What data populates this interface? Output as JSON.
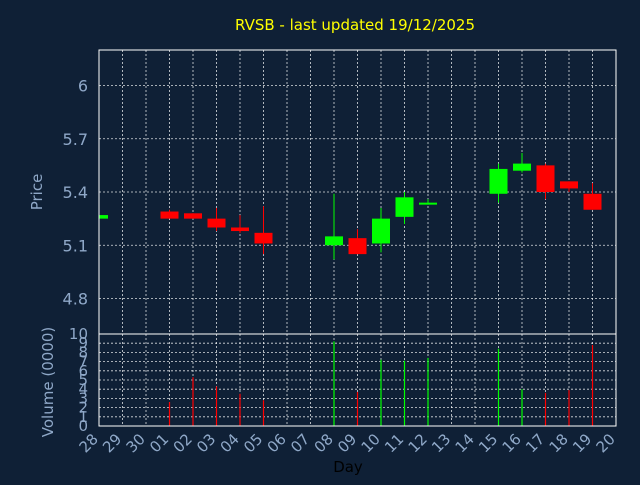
{
  "chart_data": {
    "type": "candlestick",
    "title": "RVSB - last updated 19/12/2025",
    "xlabel": "Day",
    "colors": {
      "background": "#0f2036",
      "up": "#00ff00",
      "down": "#ff0000",
      "title": "#ffff00",
      "axis_text": "#8fa8c8",
      "grid": "#ffffff"
    },
    "days": [
      "28",
      "29",
      "30",
      "01",
      "02",
      "03",
      "04",
      "05",
      "06",
      "07",
      "08",
      "09",
      "10",
      "11",
      "12",
      "13",
      "14",
      "15",
      "16",
      "17",
      "18",
      "19",
      "20"
    ],
    "price": {
      "ylabel": "Price",
      "ylim": [
        4.6,
        6.2
      ],
      "ticks": [
        "4.8",
        "5.1",
        "5.4",
        "5.7",
        "6"
      ],
      "candles": [
        {
          "day": "28",
          "open": 5.25,
          "high": 5.27,
          "low": 5.25,
          "close": 5.27
        },
        {
          "day": "01",
          "open": 5.29,
          "high": 5.3,
          "low": 5.25,
          "close": 5.25
        },
        {
          "day": "02",
          "open": 5.28,
          "high": 5.28,
          "low": 5.25,
          "close": 5.25
        },
        {
          "day": "03",
          "open": 5.25,
          "high": 5.31,
          "low": 5.18,
          "close": 5.2
        },
        {
          "day": "04",
          "open": 5.2,
          "high": 5.27,
          "low": 5.17,
          "close": 5.18
        },
        {
          "day": "05",
          "open": 5.17,
          "high": 5.32,
          "low": 5.05,
          "close": 5.11
        },
        {
          "day": "08",
          "open": 5.1,
          "high": 5.39,
          "low": 5.02,
          "close": 5.15
        },
        {
          "day": "09",
          "open": 5.14,
          "high": 5.19,
          "low": 5.05,
          "close": 5.05
        },
        {
          "day": "10",
          "open": 5.11,
          "high": 5.31,
          "low": 5.06,
          "close": 5.25
        },
        {
          "day": "11",
          "open": 5.26,
          "high": 5.4,
          "low": 5.22,
          "close": 5.37
        },
        {
          "day": "12",
          "open": 5.33,
          "high": 5.36,
          "low": 5.33,
          "close": 5.34
        },
        {
          "day": "15",
          "open": 5.39,
          "high": 5.56,
          "low": 5.34,
          "close": 5.53
        },
        {
          "day": "16",
          "open": 5.52,
          "high": 5.62,
          "low": 5.51,
          "close": 5.56
        },
        {
          "day": "17",
          "open": 5.55,
          "high": 5.56,
          "low": 5.36,
          "close": 5.4
        },
        {
          "day": "18",
          "open": 5.46,
          "high": 5.46,
          "low": 5.4,
          "close": 5.42
        },
        {
          "day": "19",
          "open": 5.39,
          "high": 5.45,
          "low": 5.3,
          "close": 5.3
        }
      ]
    },
    "volume": {
      "ylabel": "Volume (0000)",
      "ylim": [
        0,
        10
      ],
      "ticks": [
        "0",
        "1",
        "2",
        "3",
        "4",
        "5",
        "6",
        "7",
        "8",
        "9",
        "10"
      ],
      "bars": [
        {
          "day": "01",
          "value": 2.6,
          "dir": "down"
        },
        {
          "day": "02",
          "value": 5.3,
          "dir": "down"
        },
        {
          "day": "03",
          "value": 4.3,
          "dir": "down"
        },
        {
          "day": "04",
          "value": 3.5,
          "dir": "down"
        },
        {
          "day": "05",
          "value": 2.8,
          "dir": "down"
        },
        {
          "day": "08",
          "value": 9.2,
          "dir": "up"
        },
        {
          "day": "09",
          "value": 3.7,
          "dir": "down"
        },
        {
          "day": "10",
          "value": 7.2,
          "dir": "up"
        },
        {
          "day": "11",
          "value": 7.1,
          "dir": "up"
        },
        {
          "day": "12",
          "value": 7.4,
          "dir": "up"
        },
        {
          "day": "15",
          "value": 8.4,
          "dir": "up"
        },
        {
          "day": "16",
          "value": 4.0,
          "dir": "up"
        },
        {
          "day": "17",
          "value": 3.6,
          "dir": "down"
        },
        {
          "day": "18",
          "value": 3.9,
          "dir": "down"
        },
        {
          "day": "19",
          "value": 8.8,
          "dir": "down"
        }
      ]
    }
  }
}
